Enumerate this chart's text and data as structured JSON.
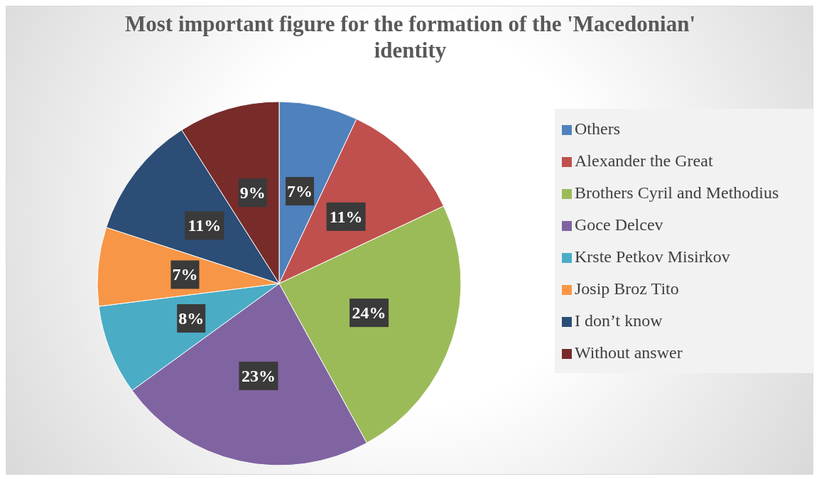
{
  "chart_data": {
    "type": "pie",
    "title": "Most important figure for the formation of the 'Macedonian' identity",
    "categories": [
      "Others",
      "Alexander the Great",
      "Brothers Cyril and Methodius",
      "Goce Delcev",
      "Krste Petkov Misirkov",
      "Josip Broz Tito",
      "I don’t know",
      "Without answer"
    ],
    "values": [
      7,
      11,
      24,
      23,
      8,
      7,
      11,
      9
    ],
    "value_labels": [
      "7%",
      "11%",
      "24%",
      "23%",
      "8%",
      "7%",
      "11%",
      "9%"
    ],
    "colors": [
      "#4f81bd",
      "#c0504d",
      "#9bbb59",
      "#8064a2",
      "#4bacc6",
      "#f79646",
      "#2c4d75",
      "#772c2a"
    ],
    "legend": "right"
  }
}
